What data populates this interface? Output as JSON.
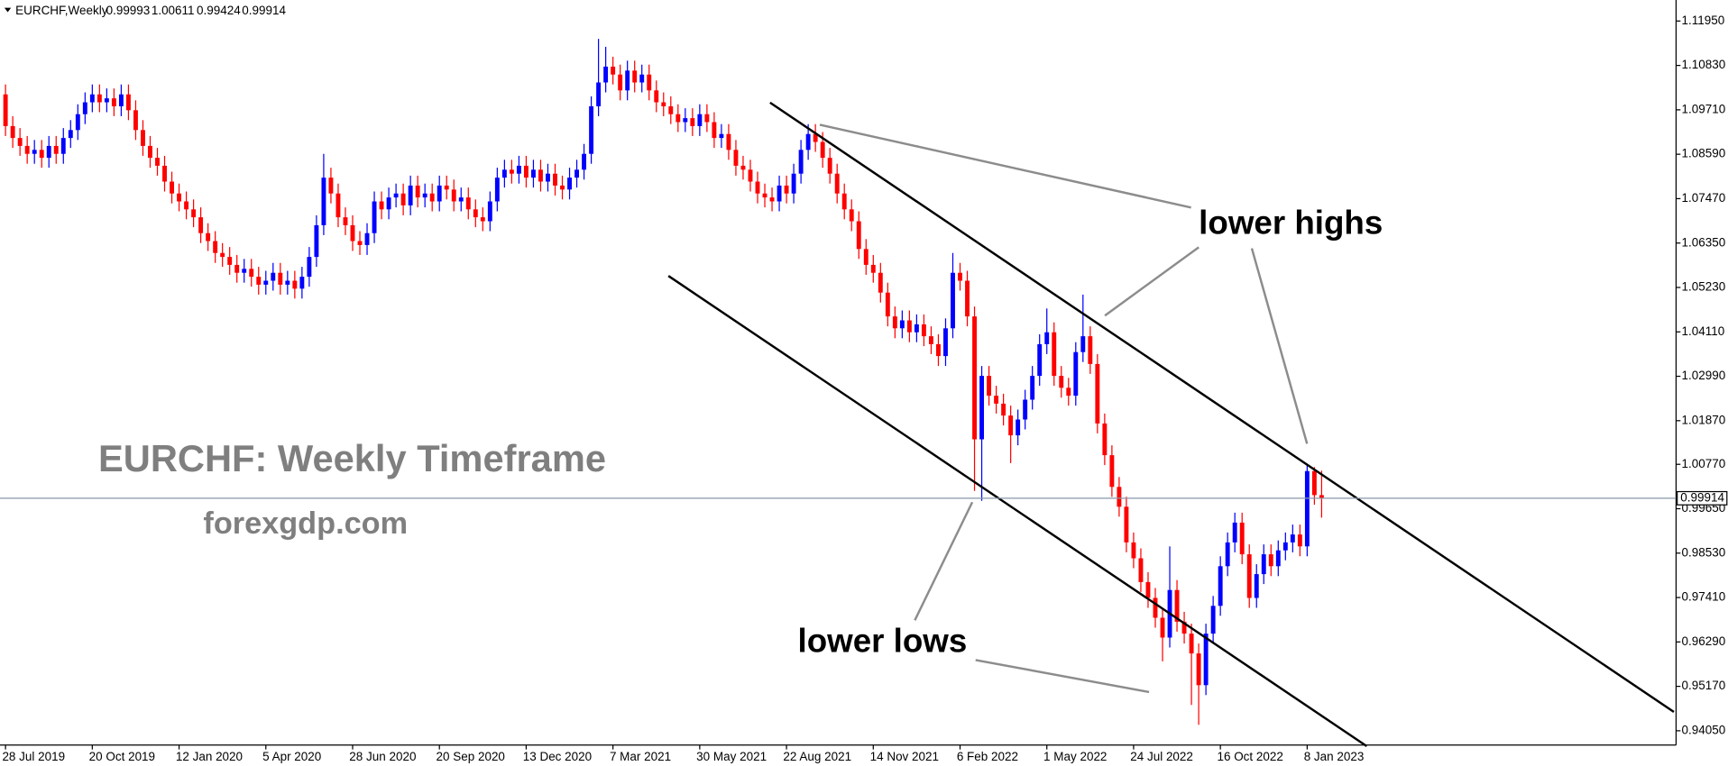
{
  "chart_data": {
    "type": "candlestick",
    "title": "EURCHF,Weekly",
    "categories": [
      "28 Jul 2019",
      null,
      null,
      null,
      null,
      null,
      null,
      null,
      null,
      null,
      null,
      null,
      "20 Oct 2019",
      null,
      null,
      null,
      null,
      null,
      null,
      null,
      null,
      null,
      null,
      null,
      "12 Jan 2020",
      null,
      null,
      null,
      null,
      null,
      null,
      null,
      null,
      null,
      null,
      null,
      "5 Apr 2020",
      null,
      null,
      null,
      null,
      null,
      null,
      null,
      null,
      null,
      null,
      null,
      "28 Jun 2020",
      null,
      null,
      null,
      null,
      null,
      null,
      null,
      null,
      null,
      null,
      null,
      "20 Sep 2020",
      null,
      null,
      null,
      null,
      null,
      null,
      null,
      null,
      null,
      null,
      null,
      "13 Dec 2020",
      null,
      null,
      null,
      null,
      null,
      null,
      null,
      null,
      null,
      null,
      null,
      "7 Mar 2021",
      null,
      null,
      null,
      null,
      null,
      null,
      null,
      null,
      null,
      null,
      null,
      "30 May 2021",
      null,
      null,
      null,
      null,
      null,
      null,
      null,
      null,
      null,
      null,
      null,
      "22 Aug 2021",
      null,
      null,
      null,
      null,
      null,
      null,
      null,
      null,
      null,
      null,
      null,
      "14 Nov 2021",
      null,
      null,
      null,
      null,
      null,
      null,
      null,
      null,
      null,
      null,
      null,
      "6 Feb 2022",
      null,
      null,
      null,
      null,
      null,
      null,
      null,
      null,
      null,
      null,
      null,
      "1 May 2022",
      null,
      null,
      null,
      null,
      null,
      null,
      null,
      null,
      null,
      null,
      null,
      "24 Jul 2022",
      null,
      null,
      null,
      null,
      null,
      null,
      null,
      null,
      null,
      null,
      null,
      "16 Oct 2022",
      null,
      null,
      null,
      null,
      null,
      null,
      null,
      null,
      null,
      null,
      null,
      "8 Jan 2023",
      null,
      null
    ],
    "open": [
      1.101,
      1.093,
      1.09,
      1.088,
      1.086,
      1.087,
      1.085,
      1.088,
      1.086,
      1.09,
      1.092,
      1.096,
      1.099,
      1.101,
      1.099,
      1.1,
      1.098,
      1.101,
      1.097,
      1.092,
      1.088,
      1.085,
      1.083,
      1.079,
      1.076,
      1.074,
      1.072,
      1.07,
      1.066,
      1.064,
      1.061,
      1.06,
      1.058,
      1.056,
      1.057,
      1.055,
      1.053,
      1.054,
      1.056,
      1.053,
      1.054,
      1.052,
      1.055,
      1.06,
      1.068,
      1.08,
      1.076,
      1.07,
      1.068,
      1.064,
      1.063,
      1.066,
      1.074,
      1.072,
      1.075,
      1.076,
      1.073,
      1.078,
      1.075,
      1.076,
      1.074,
      1.078,
      1.077,
      1.074,
      1.075,
      1.072,
      1.07,
      1.069,
      1.074,
      1.08,
      1.082,
      1.081,
      1.083,
      1.08,
      1.082,
      1.079,
      1.081,
      1.078,
      1.077,
      1.08,
      1.082,
      1.086,
      1.098,
      1.104,
      1.108,
      1.106,
      1.102,
      1.107,
      1.104,
      1.106,
      1.102,
      1.099,
      1.098,
      1.096,
      1.094,
      1.095,
      1.093,
      1.096,
      1.094,
      1.09,
      1.091,
      1.087,
      1.083,
      1.082,
      1.079,
      1.076,
      1.075,
      1.074,
      1.078,
      1.076,
      1.081,
      1.087,
      1.091,
      1.089,
      1.085,
      1.081,
      1.076,
      1.072,
      1.069,
      1.062,
      1.058,
      1.056,
      1.051,
      1.045,
      1.042,
      1.044,
      1.041,
      1.043,
      1.04,
      1.038,
      1.035,
      1.042,
      1.056,
      1.054,
      1.045,
      1.014,
      1.03,
      1.025,
      1.023,
      1.02,
      1.015,
      1.019,
      1.024,
      1.03,
      1.038,
      1.041,
      1.03,
      1.027,
      1.025,
      1.036,
      1.04,
      1.033,
      1.018,
      1.01,
      1.002,
      0.997,
      0.988,
      0.984,
      0.978,
      0.974,
      0.969,
      0.964,
      0.976,
      0.968,
      0.965,
      0.96,
      0.952,
      0.965,
      0.972,
      0.982,
      0.988,
      0.993,
      0.985,
      0.974,
      0.98,
      0.985,
      0.982,
      0.986,
      0.988,
      0.99,
      0.987,
      1.006,
      0.99993
    ],
    "high": [
      1.1035,
      1.0955,
      1.0925,
      1.0905,
      1.0895,
      1.0895,
      1.0905,
      1.0905,
      1.0925,
      1.0945,
      1.0985,
      1.1015,
      1.1035,
      1.1035,
      1.1025,
      1.1025,
      1.1035,
      1.1035,
      1.0995,
      1.0945,
      1.0905,
      1.0875,
      1.0855,
      1.0815,
      1.0785,
      1.0765,
      1.0745,
      1.0725,
      1.0685,
      1.0665,
      1.0635,
      1.0625,
      1.0605,
      1.0595,
      1.0595,
      1.0575,
      1.0565,
      1.0585,
      1.0585,
      1.0565,
      1.0565,
      1.0575,
      1.0625,
      1.0705,
      1.086,
      1.0825,
      1.0785,
      1.0725,
      1.0705,
      1.0665,
      1.0685,
      1.0765,
      1.0765,
      1.0775,
      1.0785,
      1.0785,
      1.0805,
      1.0805,
      1.0785,
      1.0785,
      1.0805,
      1.0805,
      1.0795,
      1.0775,
      1.0775,
      1.0745,
      1.0725,
      1.0765,
      1.0825,
      1.0845,
      1.0845,
      1.0855,
      1.0855,
      1.0845,
      1.0845,
      1.0835,
      1.0835,
      1.0805,
      1.0825,
      1.0845,
      1.0885,
      1.1005,
      1.115,
      1.113,
      1.1105,
      1.1085,
      1.1095,
      1.1095,
      1.1085,
      1.1085,
      1.1045,
      1.1015,
      1.1005,
      1.0985,
      1.0975,
      1.0975,
      1.0985,
      1.0985,
      1.0965,
      1.0935,
      1.0935,
      1.0895,
      1.0855,
      1.0845,
      1.0815,
      1.0785,
      1.0775,
      1.0805,
      1.0805,
      1.0835,
      1.0895,
      1.0935,
      1.0935,
      1.0915,
      1.0875,
      1.0835,
      1.0785,
      1.0745,
      1.0715,
      1.0645,
      1.0605,
      1.0585,
      1.0535,
      1.0475,
      1.0465,
      1.0465,
      1.0455,
      1.0455,
      1.0425,
      1.0405,
      1.0445,
      1.061,
      1.0585,
      1.0565,
      1.0475,
      1.0325,
      1.0325,
      1.0275,
      1.0255,
      1.0225,
      1.0215,
      1.0265,
      1.0325,
      1.0405,
      1.047,
      1.0435,
      1.0325,
      1.0295,
      1.0385,
      1.0505,
      1.0425,
      1.0355,
      1.0205,
      1.0125,
      1.0045,
      0.9995,
      0.9905,
      0.9865,
      0.9805,
      0.9765,
      0.9715,
      0.987,
      0.9785,
      0.9705,
      0.9675,
      0.9625,
      0.9675,
      0.9745,
      0.9845,
      0.9905,
      0.9955,
      0.9955,
      0.9875,
      0.9825,
      0.9875,
      0.9875,
      0.9885,
      0.9905,
      0.9925,
      0.9925,
      1.0078,
      1.007,
      1.00611
    ],
    "low": [
      1.0905,
      1.0875,
      1.0855,
      1.0835,
      1.0835,
      1.0825,
      1.0825,
      1.0835,
      1.0835,
      1.0875,
      1.0895,
      1.0935,
      1.0965,
      1.0965,
      1.0965,
      1.0955,
      1.0955,
      1.0945,
      1.0895,
      1.0855,
      1.0825,
      1.0805,
      1.0765,
      1.0735,
      1.0715,
      1.0695,
      1.0675,
      1.0635,
      1.0615,
      1.0585,
      1.0575,
      1.0555,
      1.0535,
      1.0535,
      1.0525,
      1.0505,
      1.0505,
      1.0515,
      1.0505,
      1.0505,
      1.0495,
      1.0495,
      1.0525,
      1.0575,
      1.0655,
      1.0735,
      1.0675,
      1.0655,
      1.0615,
      1.0605,
      1.0605,
      1.0635,
      1.0695,
      1.0695,
      1.0725,
      1.0705,
      1.0705,
      1.0725,
      1.0725,
      1.0715,
      1.0715,
      1.0745,
      1.0715,
      1.0715,
      1.0695,
      1.0675,
      1.0665,
      1.0665,
      1.0715,
      1.0775,
      1.0785,
      1.0785,
      1.0775,
      1.0775,
      1.0765,
      1.0765,
      1.0755,
      1.0745,
      1.0745,
      1.0775,
      1.0795,
      1.0835,
      1.0955,
      1.1015,
      1.1035,
      1.0995,
      1.0995,
      1.1015,
      1.1015,
      1.0995,
      1.0965,
      1.0955,
      1.0935,
      1.0915,
      1.0915,
      1.0905,
      1.0905,
      1.0915,
      1.0875,
      1.0875,
      1.0845,
      1.0805,
      1.0795,
      1.0765,
      1.0735,
      1.0725,
      1.0715,
      1.0715,
      1.0735,
      1.0735,
      1.0785,
      1.0845,
      1.0865,
      1.0825,
      1.0785,
      1.0735,
      1.0695,
      1.0665,
      1.0595,
      1.0555,
      1.0535,
      1.0485,
      1.0425,
      1.0395,
      1.0395,
      1.0385,
      1.0385,
      1.0375,
      1.0355,
      1.0325,
      1.0325,
      1.0395,
      1.0515,
      1.0425,
      1.001,
      0.9985,
      1.0225,
      1.0205,
      1.0175,
      1.008,
      1.0125,
      1.0165,
      1.0215,
      1.0275,
      1.0355,
      1.0275,
      1.0245,
      1.0225,
      1.0225,
      1.0335,
      1.0305,
      1.0155,
      1.0075,
      0.9995,
      0.9945,
      0.9855,
      0.9815,
      0.9755,
      0.9715,
      0.9665,
      0.958,
      0.9615,
      0.9655,
      0.9625,
      0.947,
      0.942,
      0.9495,
      0.9625,
      0.9695,
      0.9795,
      0.9855,
      0.9825,
      0.9715,
      0.9715,
      0.9775,
      0.9795,
      0.9795,
      0.9835,
      0.9855,
      0.9845,
      0.9845,
      0.9975,
      0.99424
    ],
    "close": [
      1.093,
      1.09,
      1.088,
      1.086,
      1.087,
      1.085,
      1.088,
      1.086,
      1.09,
      1.092,
      1.096,
      1.099,
      1.101,
      1.099,
      1.1,
      1.098,
      1.101,
      1.097,
      1.092,
      1.088,
      1.085,
      1.083,
      1.079,
      1.076,
      1.074,
      1.072,
      1.07,
      1.066,
      1.064,
      1.061,
      1.06,
      1.058,
      1.056,
      1.057,
      1.055,
      1.053,
      1.054,
      1.056,
      1.053,
      1.054,
      1.052,
      1.055,
      1.06,
      1.068,
      1.08,
      1.076,
      1.07,
      1.068,
      1.064,
      1.063,
      1.066,
      1.074,
      1.072,
      1.075,
      1.076,
      1.073,
      1.078,
      1.075,
      1.076,
      1.074,
      1.078,
      1.077,
      1.074,
      1.075,
      1.072,
      1.07,
      1.069,
      1.074,
      1.08,
      1.082,
      1.081,
      1.083,
      1.08,
      1.082,
      1.079,
      1.081,
      1.078,
      1.077,
      1.08,
      1.082,
      1.086,
      1.098,
      1.104,
      1.108,
      1.106,
      1.102,
      1.107,
      1.104,
      1.106,
      1.102,
      1.099,
      1.098,
      1.096,
      1.094,
      1.095,
      1.093,
      1.096,
      1.094,
      1.09,
      1.091,
      1.087,
      1.083,
      1.082,
      1.079,
      1.076,
      1.075,
      1.074,
      1.078,
      1.076,
      1.081,
      1.087,
      1.091,
      1.089,
      1.085,
      1.081,
      1.076,
      1.072,
      1.069,
      1.062,
      1.058,
      1.056,
      1.051,
      1.045,
      1.042,
      1.044,
      1.041,
      1.043,
      1.04,
      1.038,
      1.035,
      1.042,
      1.056,
      1.054,
      1.045,
      1.014,
      1.03,
      1.025,
      1.023,
      1.02,
      1.015,
      1.019,
      1.024,
      1.03,
      1.038,
      1.041,
      1.03,
      1.027,
      1.025,
      1.036,
      1.04,
      1.033,
      1.018,
      1.01,
      1.002,
      0.997,
      0.988,
      0.984,
      0.978,
      0.974,
      0.969,
      0.964,
      0.976,
      0.968,
      0.965,
      0.96,
      0.952,
      0.965,
      0.972,
      0.982,
      0.988,
      0.993,
      0.985,
      0.974,
      0.98,
      0.985,
      0.982,
      0.986,
      0.988,
      0.99,
      0.987,
      1.006,
      0.99993,
      0.99914
    ],
    "up_color": "#0000ff",
    "down_color": "#ff0000",
    "ylim": [
      0.9369,
      1.1248
    ],
    "yticks": [
      {
        "value": 1.1195,
        "label": "1.11950"
      },
      {
        "value": 1.1083,
        "label": "1.10830"
      },
      {
        "value": 1.0971,
        "label": "1.09710"
      },
      {
        "value": 1.0859,
        "label": "1.08590"
      },
      {
        "value": 1.0747,
        "label": "1.07470"
      },
      {
        "value": 1.0635,
        "label": "1.06350"
      },
      {
        "value": 1.0523,
        "label": "1.05230"
      },
      {
        "value": 1.0411,
        "label": "1.04110"
      },
      {
        "value": 1.0299,
        "label": "1.02990"
      },
      {
        "value": 1.0187,
        "label": "1.01870"
      },
      {
        "value": 1.0077,
        "label": "1.00770"
      },
      {
        "value": 0.9965,
        "label": "0.99650"
      },
      {
        "value": 0.9853,
        "label": "0.98530"
      },
      {
        "value": 0.9741,
        "label": "0.97410"
      },
      {
        "value": 0.9629,
        "label": "0.96290"
      },
      {
        "value": 0.9517,
        "label": "0.95170"
      },
      {
        "value": 0.9405,
        "label": "0.94050"
      }
    ],
    "annotations": [
      "EURCHF: Weekly Timeframe",
      "forexgdp.com",
      "lower highs",
      "lower lows"
    ]
  }
}
